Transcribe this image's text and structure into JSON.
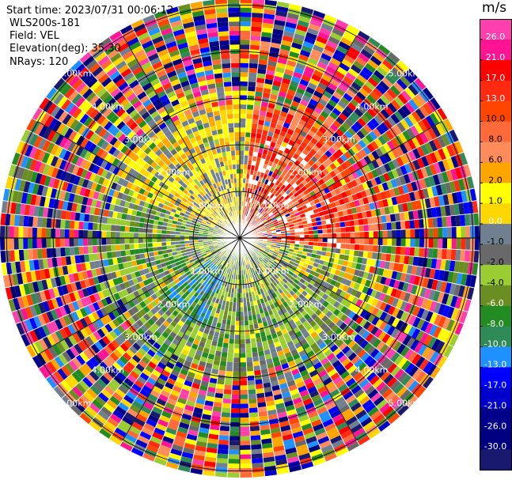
{
  "header": {
    "start_time": "Start time: 2023/07/31 00:06:12",
    "instrument": "WLS200s-181",
    "field": "Field: VEL",
    "elevation": "Elevation(deg): 35.30",
    "nrays": "NRays: 120"
  },
  "chart_data": {
    "type": "heatmap",
    "projection": "polar (PPI scan)",
    "field": "VEL",
    "unit": "m/s",
    "n_rays": 120,
    "elevation_deg": 35.3,
    "range_rings_km": [
      1.0,
      2.0,
      3.0,
      4.0,
      5.0
    ],
    "range_ring_labels": [
      "1.00km",
      "2.00km",
      "3.00km",
      "4.00km",
      "5.00km"
    ],
    "colorbar": {
      "title": "m/s",
      "ticks": [
        "26.0",
        "21.0",
        "17.0",
        "13.0",
        "10.0",
        "8.0",
        "6.0",
        "2.0",
        "1.0",
        "0.0",
        "-1.0",
        "-2.0",
        "-4.0",
        "-6.0",
        "-8.0",
        "-10.0",
        "-13.0",
        "-17.0",
        "-21.0",
        "-26.0",
        "-30.0"
      ],
      "colors": [
        "#ff3fae",
        "#ff1493",
        "#ff0000",
        "#ff2a10",
        "#ff4500",
        "#ff6a3a",
        "#ff8c5a",
        "#ffa500",
        "#ffff00",
        "#ffd700",
        "#708090",
        "#696969",
        "#9acd32",
        "#6b8e23",
        "#228b22",
        "#2e8b57",
        "#1e90ff",
        "#0000ff",
        "#0000cd",
        "#00008b",
        "#000080",
        "#191970"
      ]
    },
    "pattern_summary": [
      {
        "sector": "north-west, inner 0-3 km",
        "approx_velocity": "2.0 to 6.0",
        "color_name": "yellow"
      },
      {
        "sector": "north-east, inner 0-3 km",
        "approx_velocity": "8.0 to 13.0",
        "color_name": "orange-red"
      },
      {
        "sector": "west/south, inner 0-3 km",
        "approx_velocity": "-2.0 to -6.0",
        "color_name": "green"
      },
      {
        "sector": "south-south-west, 1-2 km",
        "approx_velocity": "-8.0 to -10.0",
        "color_name": "blue"
      },
      {
        "sector": "outer 3-5 km",
        "approx_velocity": "-30.0 to 26.0 (noise)",
        "color_name": "mixed"
      }
    ]
  }
}
